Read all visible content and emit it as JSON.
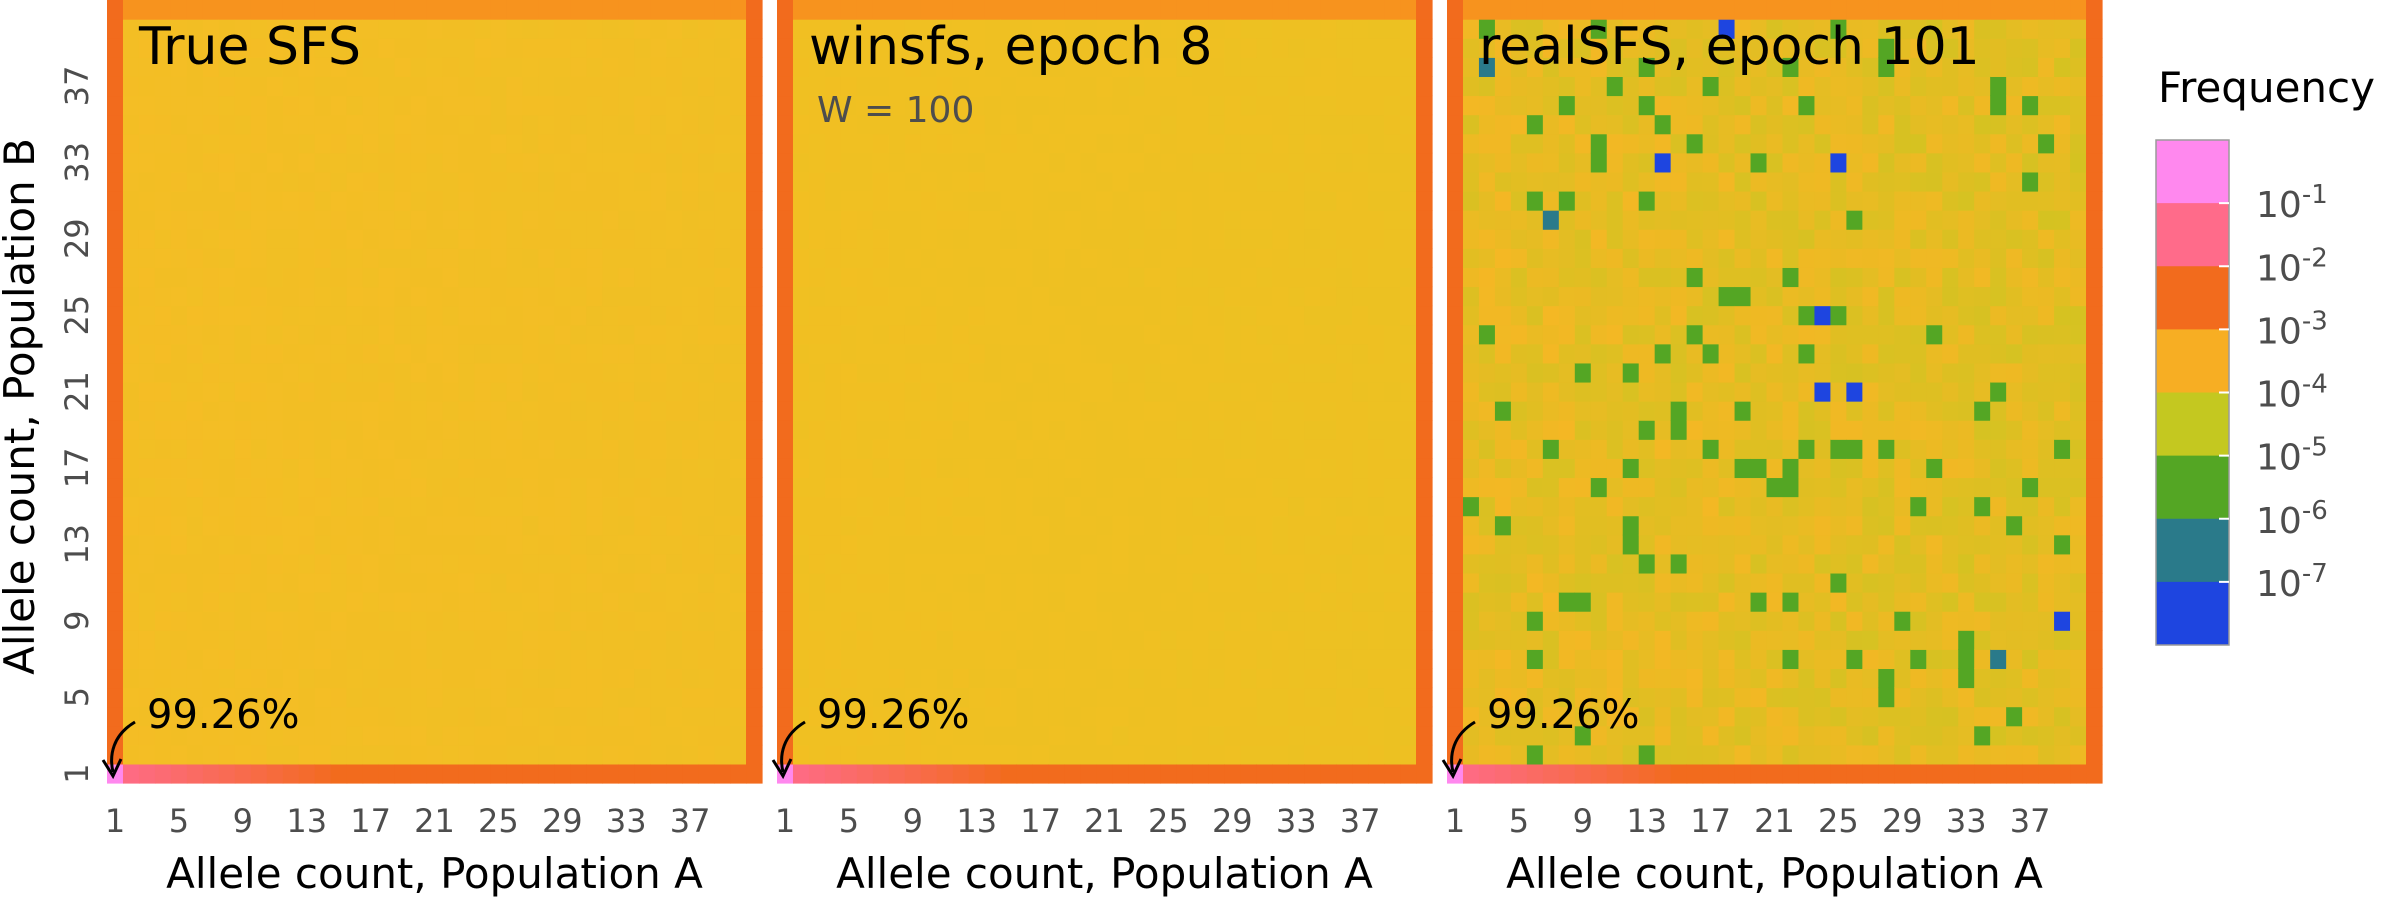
{
  "chart_data": {
    "type": "heatmap",
    "n_bins": 41,
    "x_tick_labels": [
      "1",
      "5",
      "9",
      "13",
      "17",
      "21",
      "25",
      "29",
      "33",
      "37"
    ],
    "y_tick_labels": [
      "1",
      "5",
      "9",
      "13",
      "17",
      "21",
      "25",
      "29",
      "33",
      "37"
    ],
    "xlabel": "Allele count, Population A",
    "ylabel": "Allele count, Population B",
    "zero_cell_note": "99.26%",
    "legend": {
      "title": "Frequency",
      "labels": [
        "10^-1",
        "10^-2",
        "10^-3",
        "10^-4",
        "10^-5",
        "10^-6",
        "10^-7"
      ],
      "colors": [
        "#ff88ee",
        "#ff6b8a",
        "#f26b1d",
        "#f7ae23",
        "#c4c820",
        "#54a624",
        "#2a7a8a",
        "#1e45e0"
      ]
    },
    "panels": [
      {
        "title": "True SFS",
        "subtitle": "",
        "edge_colors": {
          "corner": "#ff88ee",
          "bottom_start": "#ff6b8a",
          "bottom_end": "#f26b1d",
          "right": "#f26b1d",
          "top": "#f7931e",
          "left": "#f26b1d"
        },
        "interior": {
          "base": "#f5bd25",
          "alt": "#e8c322",
          "noise": 0.25,
          "speckle": 0
        },
        "outliers": []
      },
      {
        "title": "winsfs, epoch 8",
        "subtitle": "W = 100",
        "edge_colors": {
          "corner": "#ff88ee",
          "bottom_start": "#ff6b8a",
          "bottom_end": "#f26b1d",
          "right": "#f26b1d",
          "top": "#f7931e",
          "left": "#f26b1d"
        },
        "interior": {
          "base": "#f2bf22",
          "alt": "#e0c522",
          "noise": 0.15,
          "speckle": 0
        },
        "outliers": []
      },
      {
        "title": "realSFS, epoch 101",
        "subtitle": "",
        "edge_colors": {
          "corner": "#ff88ee",
          "bottom_start": "#ff6b8a",
          "bottom_end": "#f26b1d",
          "right": "#f26b1d",
          "top": "#f7931e",
          "left": "#f26b1d"
        },
        "interior": {
          "base": "#f5b724",
          "alt": "#c4c820",
          "noise": 0.55,
          "speckle": 0.06
        },
        "outliers": [
          {
            "x": 23,
            "y": 24,
            "color": "#1e45e0"
          },
          {
            "x": 25,
            "y": 20,
            "color": "#1e45e0"
          },
          {
            "x": 23,
            "y": 20,
            "color": "#1e45e0"
          },
          {
            "x": 13,
            "y": 32,
            "color": "#1e45e0"
          },
          {
            "x": 24,
            "y": 32,
            "color": "#1e45e0"
          },
          {
            "x": 17,
            "y": 39,
            "color": "#1e45e0"
          },
          {
            "x": 38,
            "y": 8,
            "color": "#1e45e0"
          },
          {
            "x": 34,
            "y": 6,
            "color": "#2a7a8a"
          },
          {
            "x": 2,
            "y": 37,
            "color": "#2a7a8a"
          },
          {
            "x": 6,
            "y": 29,
            "color": "#2a7a8a"
          }
        ]
      }
    ]
  }
}
